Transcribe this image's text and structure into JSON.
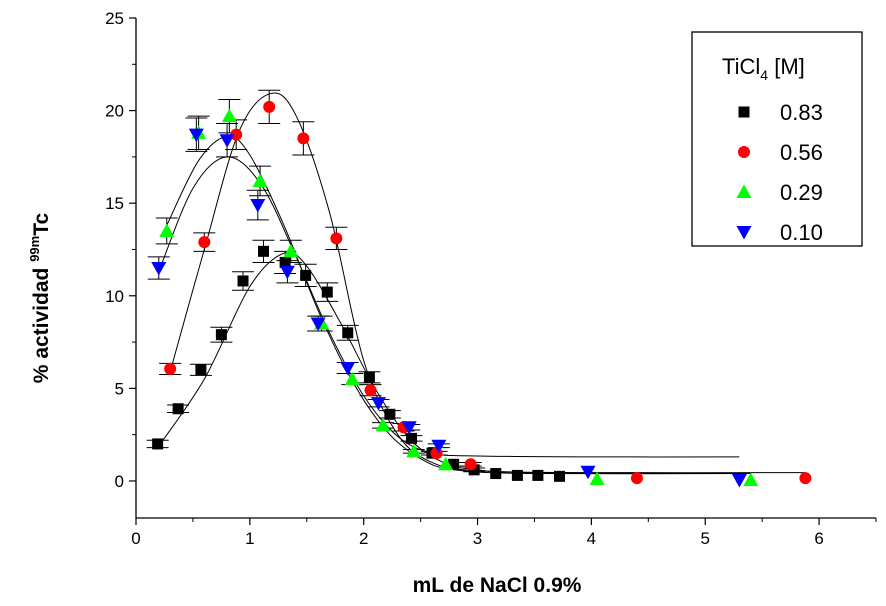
{
  "chart_data": {
    "type": "scatter",
    "xlabel": "mL de NaCl 0.9%",
    "ylabel": {
      "pre": "% actividad ",
      "sup": "99m",
      "post": "Tc"
    },
    "xlim": [
      0,
      6.5
    ],
    "ylim": [
      -2,
      25
    ],
    "x_ticks": [
      0,
      1,
      2,
      3,
      4,
      5,
      6
    ],
    "y_ticks": [
      0,
      5,
      10,
      15,
      20,
      25
    ],
    "grid": false,
    "legend": {
      "position": "top-right",
      "title": {
        "pre": "TiCl",
        "sub": "4",
        "post": " [M]"
      }
    },
    "series": [
      {
        "name": "0.83",
        "marker": "square",
        "color": "#000000",
        "points": [
          [
            0.19,
            2.0
          ],
          [
            0.37,
            3.9
          ],
          [
            0.57,
            6.0
          ],
          [
            0.75,
            7.9
          ],
          [
            0.94,
            10.8
          ],
          [
            1.12,
            12.4
          ],
          [
            1.31,
            11.8
          ],
          [
            1.49,
            11.1
          ],
          [
            1.68,
            10.2
          ],
          [
            1.86,
            8.0
          ],
          [
            2.05,
            5.6
          ],
          [
            2.23,
            3.6
          ],
          [
            2.42,
            2.3
          ],
          [
            2.6,
            1.5
          ],
          [
            2.79,
            0.9
          ],
          [
            2.97,
            0.6
          ],
          [
            3.16,
            0.4
          ],
          [
            3.35,
            0.3
          ],
          [
            3.53,
            0.3
          ],
          [
            3.72,
            0.25
          ]
        ],
        "err": [
          0.2,
          0.2,
          0.3,
          0.4,
          0.5,
          0.6,
          0.6,
          0.6,
          0.5,
          0.4,
          0.3,
          0.2,
          0.15,
          0.1,
          0.1,
          0.1,
          0.05,
          0.05,
          0.05,
          0.05
        ],
        "fit": [
          [
            0.19,
            1.8
          ],
          [
            0.6,
            5.5
          ],
          [
            1.0,
            10.5
          ],
          [
            1.3,
            12.3
          ],
          [
            1.5,
            11.6
          ],
          [
            1.8,
            8.5
          ],
          [
            2.1,
            5.0
          ],
          [
            2.4,
            2.3
          ],
          [
            2.7,
            1.0
          ],
          [
            3.0,
            0.6
          ],
          [
            3.5,
            0.45
          ],
          [
            5.3,
            0.4
          ]
        ]
      },
      {
        "name": "0.56",
        "marker": "circle",
        "color": "#ff0000",
        "points": [
          [
            0.3,
            6.05
          ],
          [
            0.6,
            12.9
          ],
          [
            0.88,
            18.7
          ],
          [
            1.17,
            20.2
          ],
          [
            1.47,
            18.5
          ],
          [
            1.76,
            13.1
          ],
          [
            2.06,
            4.9
          ],
          [
            2.35,
            2.9
          ],
          [
            2.64,
            1.5
          ],
          [
            2.94,
            0.9
          ],
          [
            4.4,
            0.15
          ],
          [
            5.88,
            0.15
          ]
        ],
        "err": [
          0.3,
          0.5,
          0.8,
          0.9,
          0.9,
          0.6,
          0.3,
          0.2,
          0.1,
          0.1,
          0.05,
          0.05
        ],
        "fit": [
          [
            0.3,
            5.9
          ],
          [
            0.6,
            12.5
          ],
          [
            0.9,
            18.8
          ],
          [
            1.17,
            20.9
          ],
          [
            1.4,
            19.8
          ],
          [
            1.7,
            14.5
          ],
          [
            2.0,
            6.5
          ],
          [
            2.3,
            2.5
          ],
          [
            2.6,
            1.0
          ],
          [
            3.0,
            0.55
          ],
          [
            4.0,
            0.45
          ],
          [
            5.88,
            0.45
          ]
        ]
      },
      {
        "name": "0.29",
        "marker": "triangle-up",
        "color": "#00ff00",
        "points": [
          [
            0.27,
            13.5
          ],
          [
            0.55,
            18.8
          ],
          [
            0.82,
            19.7
          ],
          [
            1.09,
            16.2
          ],
          [
            1.36,
            12.4
          ],
          [
            1.63,
            8.5
          ],
          [
            1.9,
            5.5
          ],
          [
            2.17,
            3.0
          ],
          [
            2.44,
            1.6
          ],
          [
            2.72,
            0.9
          ],
          [
            4.05,
            0.1
          ],
          [
            5.4,
            0.05
          ]
        ],
        "err": [
          0.7,
          0.9,
          0.9,
          0.8,
          0.6,
          0.4,
          0.3,
          0.15,
          0.1,
          0.05,
          0.05,
          0.05
        ],
        "fit": [
          [
            0.27,
            13.8
          ],
          [
            0.55,
            17.3
          ],
          [
            0.8,
            18.6
          ],
          [
            1.0,
            17.6
          ],
          [
            1.3,
            13.8
          ],
          [
            1.6,
            9.2
          ],
          [
            1.9,
            5.4
          ],
          [
            2.2,
            2.7
          ],
          [
            2.5,
            1.2
          ],
          [
            2.8,
            0.6
          ],
          [
            3.5,
            0.4
          ],
          [
            5.4,
            0.4
          ]
        ]
      },
      {
        "name": "0.10",
        "marker": "triangle-down",
        "color": "#0000ff",
        "points": [
          [
            0.2,
            11.5
          ],
          [
            0.53,
            18.7
          ],
          [
            0.8,
            18.4
          ],
          [
            1.07,
            14.9
          ],
          [
            1.33,
            11.3
          ],
          [
            1.6,
            8.5
          ],
          [
            1.86,
            6.1
          ],
          [
            2.13,
            4.2
          ],
          [
            2.4,
            2.9
          ],
          [
            2.66,
            1.9
          ],
          [
            3.97,
            0.5
          ],
          [
            5.3,
            0.05
          ]
        ],
        "err": [
          0.6,
          0.9,
          0.9,
          0.8,
          0.6,
          0.4,
          0.3,
          0.2,
          0.15,
          0.1,
          0.05,
          0.05
        ],
        "fit": [
          [
            0.2,
            11.3
          ],
          [
            0.5,
            15.8
          ],
          [
            0.8,
            17.5
          ],
          [
            1.1,
            16.0
          ],
          [
            1.4,
            12.2
          ],
          [
            1.7,
            8.0
          ],
          [
            2.0,
            4.6
          ],
          [
            2.3,
            2.4
          ],
          [
            2.6,
            1.5
          ],
          [
            3.0,
            1.35
          ],
          [
            4.0,
            1.3
          ],
          [
            5.3,
            1.3
          ]
        ]
      }
    ]
  }
}
